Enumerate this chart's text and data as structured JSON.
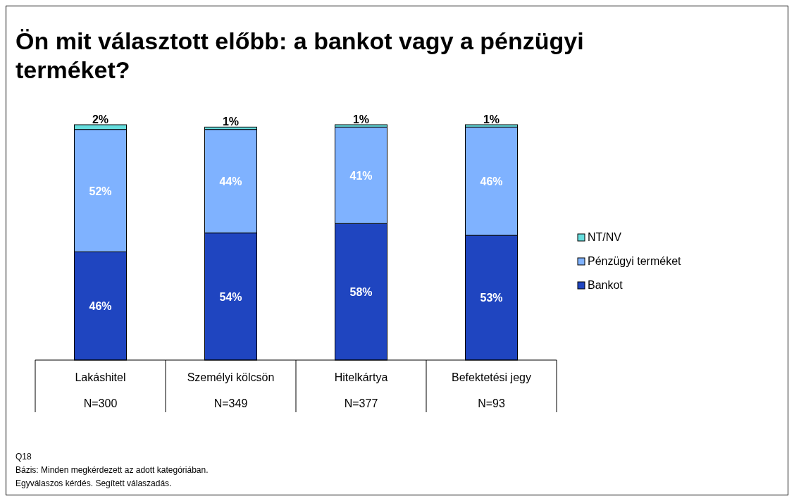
{
  "chart_data": {
    "type": "bar",
    "title": "Ön mit választott előbb: a bankot vagy a pénzügyi terméket?",
    "categories": [
      "Lakáshitel\nN=300",
      "Személyi kölcsön\nN=349",
      "Hitelkártya\nN=377",
      "Befektetési jegy\nN=93"
    ],
    "stacked": true,
    "legend": "right",
    "series": [
      {
        "name": "Bankot",
        "color": "#1f45c0",
        "values": [
          46,
          54,
          58,
          53
        ],
        "value_labels": [
          "46%",
          "54%",
          "58%",
          "53%"
        ]
      },
      {
        "name": "Pénzügyi terméket",
        "color": "#7fb2ff",
        "values": [
          52,
          44,
          41,
          46
        ],
        "value_labels": [
          "52%",
          "44%",
          "41%",
          "46%"
        ]
      },
      {
        "name": "NT/NV",
        "color": "#66dede",
        "values": [
          2,
          1,
          1,
          1
        ],
        "value_labels": [
          "2%",
          "1%",
          "1%",
          "1%"
        ]
      }
    ],
    "annotations": [
      "Q18",
      "Bázis: Minden megkérdezett az adott kategóriában.",
      "Egyválaszos kérdés. Segített válaszadás."
    ]
  }
}
